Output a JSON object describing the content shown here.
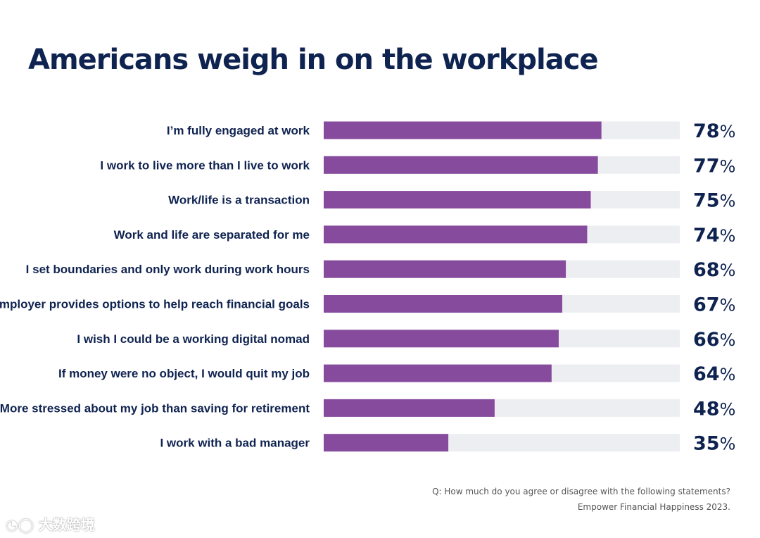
{
  "title": "Americans weigh in on the workplace",
  "chart_data": {
    "type": "bar",
    "orientation": "horizontal",
    "title": "Americans weigh in on the workplace",
    "categories": [
      "I’m fully engaged at work",
      "I work to live more than I live to work",
      "Work/life is a transaction",
      "Work and life are separated for me",
      "I set boundaries and only work during work hours",
      "Employer provides options to help reach financial goals",
      "I wish I could be a working digital nomad",
      "If money were no object, I would quit my job",
      "More stressed about my job than saving for retirement",
      "I work with a bad manager"
    ],
    "values": [
      78,
      77,
      75,
      74,
      68,
      67,
      66,
      64,
      48,
      35
    ],
    "value_labels": [
      "78",
      "77",
      "75",
      "74",
      "68",
      "67",
      "66",
      "64",
      "48",
      "35"
    ],
    "value_suffix": "%",
    "xlim": [
      0,
      100
    ],
    "grid": false,
    "legend": "none",
    "bar_color": "#874b9d",
    "track_color": "#eceef2",
    "label_color": "#0f2350"
  },
  "footnote": {
    "question": "Q: How much do you agree or disagree with the following statements?",
    "source": "Empower Financial Happiness 2023."
  },
  "watermark": "大数跨境"
}
